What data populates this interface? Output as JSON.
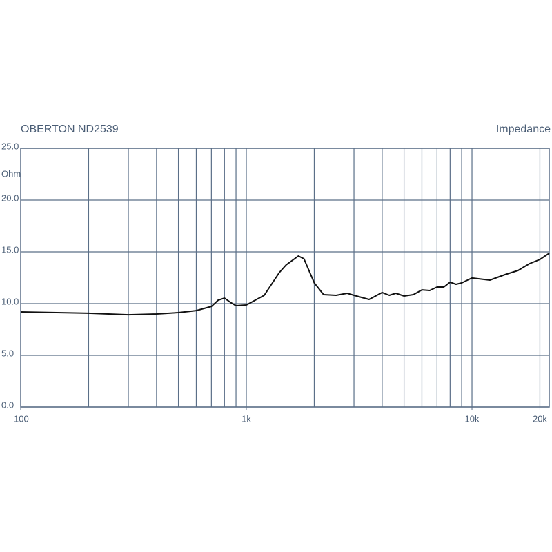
{
  "chart_data": {
    "type": "line",
    "title": "OBERTON ND2539",
    "subtitle": "Impedance",
    "y_unit": "Ohm",
    "log_x": true,
    "grid": true,
    "xlim": [
      100,
      22000
    ],
    "ylim": [
      0,
      25
    ],
    "xticks": [
      100,
      {
        "value": 1000,
        "label": "1k"
      },
      {
        "value": 10000,
        "label": "10k"
      },
      {
        "value": 20000,
        "label": "20k"
      }
    ],
    "x_grid": [
      200,
      300,
      400,
      500,
      600,
      700,
      800,
      900,
      1000,
      2000,
      3000,
      4000,
      5000,
      6000,
      7000,
      8000,
      9000,
      10000,
      20000
    ],
    "yticks": [
      {
        "value": 0,
        "label": "0.0"
      },
      {
        "value": 5,
        "label": "5.0"
      },
      {
        "value": 10,
        "label": "10.0"
      },
      {
        "value": 15,
        "label": "15.0"
      },
      {
        "value": 20,
        "label": "20.0"
      },
      {
        "value": 25,
        "label": "25.0"
      }
    ],
    "series": [
      {
        "color": "#111111",
        "x": [
          100,
          200,
          300,
          400,
          500,
          600,
          700,
          750,
          800,
          850,
          900,
          1000,
          1200,
          1400,
          1500,
          1700,
          1800,
          2000,
          2200,
          2500,
          2800,
          3000,
          3500,
          4000,
          4300,
          4600,
          5000,
          5500,
          6000,
          6500,
          7000,
          7500,
          8000,
          8500,
          9000,
          10000,
          12000,
          14000,
          16000,
          18000,
          20000,
          22000
        ],
        "values": [
          9.2,
          9.07,
          8.93,
          9.0,
          9.13,
          9.33,
          9.73,
          10.33,
          10.53,
          10.13,
          9.8,
          9.87,
          10.8,
          13.0,
          13.73,
          14.6,
          14.33,
          12.0,
          10.87,
          10.8,
          11.0,
          10.8,
          10.4,
          11.07,
          10.8,
          11.0,
          10.73,
          10.87,
          11.33,
          11.27,
          11.6,
          11.6,
          12.07,
          11.87,
          12.0,
          12.47,
          12.27,
          12.8,
          13.2,
          13.87,
          14.27,
          14.87
        ]
      }
    ]
  }
}
